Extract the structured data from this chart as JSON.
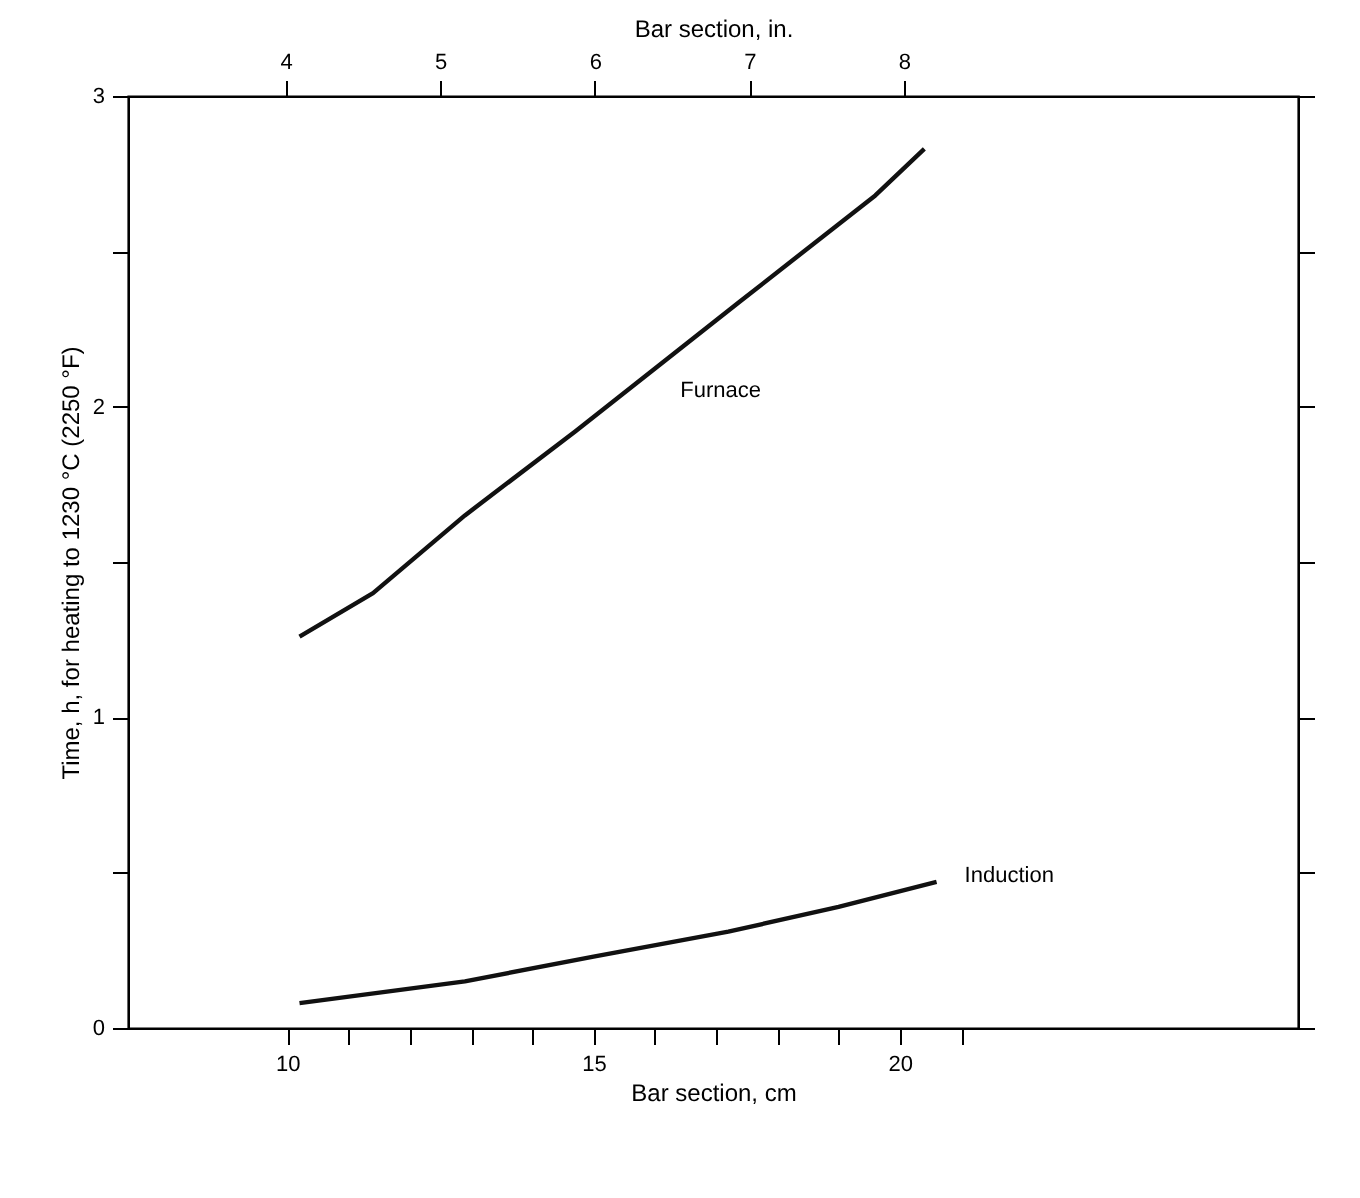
{
  "chart_data": {
    "type": "line",
    "xlabel": "Bar section, cm",
    "x2label": "Bar section, in.",
    "ylabel": "Time, h, for heating to 1230 °C (2250 °F)",
    "xlim": [
      7.4,
      26.5
    ],
    "xticks": [
      10,
      {
        "value": 11,
        "label": null
      },
      {
        "value": 12,
        "label": null
      },
      {
        "value": 13,
        "label": null
      },
      {
        "value": 14,
        "label": null
      },
      15,
      {
        "value": 16,
        "label": null
      },
      {
        "value": 17,
        "label": null
      },
      {
        "value": 18,
        "label": null
      },
      {
        "value": 19,
        "label": null
      },
      20,
      {
        "value": 21,
        "label": null
      }
    ],
    "x2lim": [
      2.98,
      10.55
    ],
    "x2ticks": [
      4,
      5,
      6,
      7,
      8
    ],
    "ylim": [
      0,
      3
    ],
    "yticks": [
      0,
      {
        "value": 0.5,
        "label": null
      },
      1,
      {
        "value": 1.5,
        "label": null
      },
      2,
      {
        "value": 2.5,
        "label": null
      },
      3
    ],
    "grid": false,
    "legend": false,
    "line_style": "solid",
    "series": [
      {
        "name": "Furnace",
        "color": "#111111",
        "x": [
          10.2,
          11.4,
          12.9,
          14.7,
          17.4,
          19.6,
          20.4
        ],
        "values": [
          1.26,
          1.4,
          1.65,
          1.92,
          2.34,
          2.68,
          2.83
        ]
      },
      {
        "name": "Induction",
        "color": "#111111",
        "x": [
          10.2,
          12.9,
          15.0,
          17.2,
          19.0,
          20.6
        ],
        "values": [
          0.08,
          0.15,
          0.23,
          0.31,
          0.39,
          0.47
        ]
      }
    ]
  }
}
